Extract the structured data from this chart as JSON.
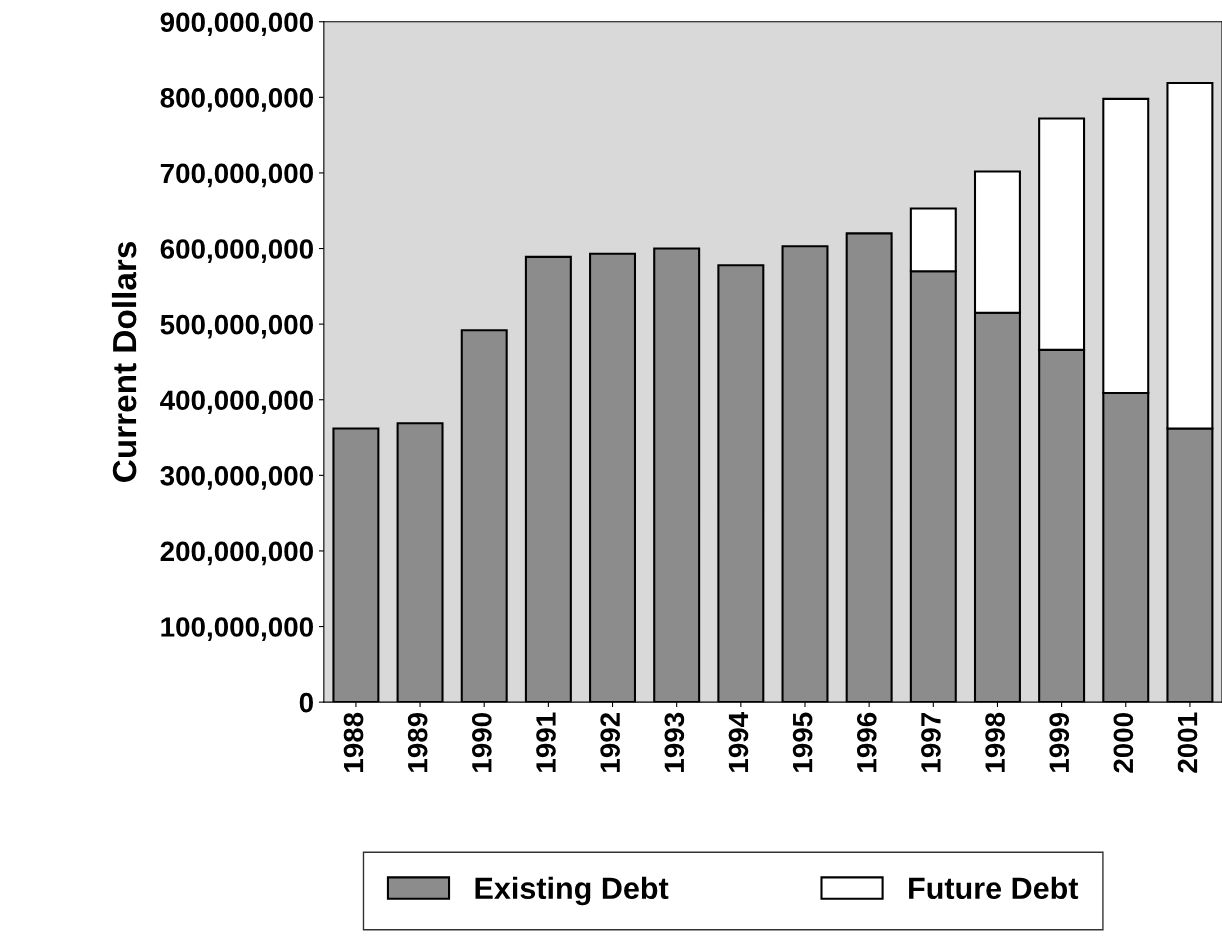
{
  "chart_data": {
    "type": "bar",
    "stacked": true,
    "ylabel": "Current Dollars",
    "categories": [
      "1988",
      "1989",
      "1990",
      "1991",
      "1992",
      "1993",
      "1994",
      "1995",
      "1996",
      "1997",
      "1998",
      "1999",
      "2000",
      "2001"
    ],
    "series": [
      {
        "name": "Existing Debt",
        "color": "#8c8c8c",
        "values": [
          362000000,
          369000000,
          492000000,
          589000000,
          593000000,
          600000000,
          578000000,
          603000000,
          620000000,
          570000000,
          515000000,
          466000000,
          409000000,
          362000000
        ]
      },
      {
        "name": "Future Debt",
        "color": "#ffffff",
        "values": [
          null,
          null,
          null,
          null,
          null,
          null,
          null,
          null,
          null,
          83000000,
          187000000,
          306000000,
          389000000,
          457000000
        ]
      }
    ],
    "ylim": [
      0,
      900000000
    ],
    "yticks": [
      {
        "value": 0,
        "label": "0"
      },
      {
        "value": 100000000,
        "label": "100,000,000"
      },
      {
        "value": 200000000,
        "label": "200,000,000"
      },
      {
        "value": 300000000,
        "label": "300,000,000"
      },
      {
        "value": 400000000,
        "label": "400,000,000"
      },
      {
        "value": 500000000,
        "label": "500,000,000"
      },
      {
        "value": 600000000,
        "label": "600,000,000"
      },
      {
        "value": 700000000,
        "label": "700,000,000"
      },
      {
        "value": 800000000,
        "label": "800,000,000"
      },
      {
        "value": 900000000,
        "label": "900,000,000"
      }
    ],
    "grid": false,
    "legend": "bottom"
  }
}
